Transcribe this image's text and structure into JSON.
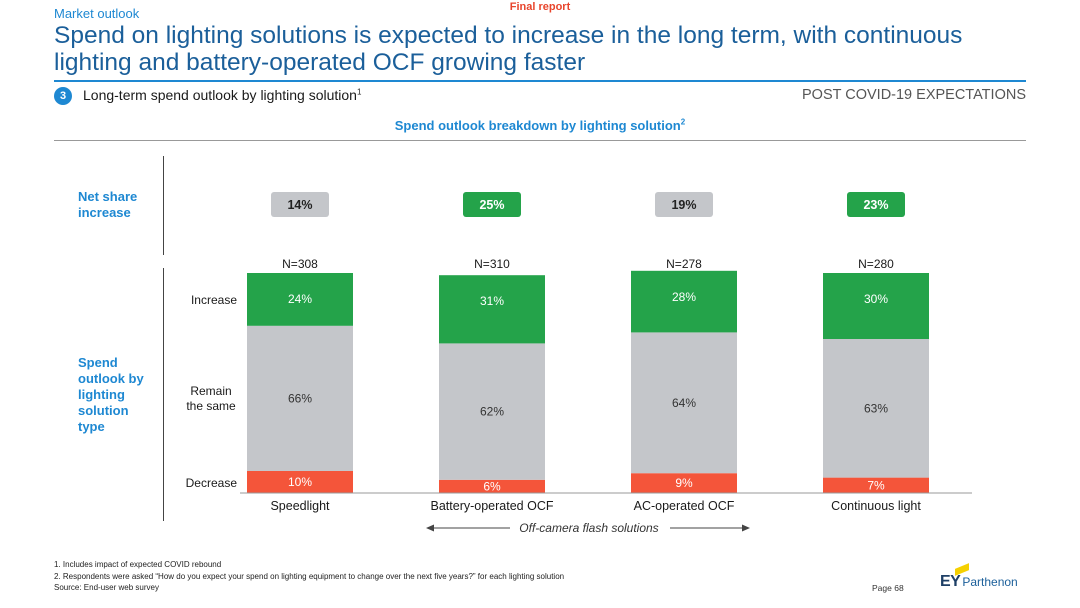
{
  "header": {
    "final_report": "Final report",
    "section_label": "Market outlook",
    "headline": "Spend on lighting solutions is expected to increase in the long term, with continuous lighting and battery-operated OCF growing faster",
    "step_number": "3",
    "subtitle": "Long-term spend outlook by lighting solution",
    "subtitle_note": "1",
    "expectations": "POST COVID-19 EXPECTATIONS"
  },
  "labels": {
    "net_share": "Net share increase",
    "spend_outlook": "Spend outlook by lighting solution type",
    "group_label": "Off-camera flash solutions"
  },
  "chart_data": {
    "type": "bar",
    "stacked": true,
    "title": "Spend outlook breakdown by lighting solution",
    "title_note": "2",
    "categories": [
      "Speedlight",
      "Battery-operated OCF",
      "AC-operated OCF",
      "Continuous light"
    ],
    "sample_sizes": [
      "N=308",
      "N=310",
      "N=278",
      "N=280"
    ],
    "net_share_increase": [
      "14%",
      "25%",
      "19%",
      "23%"
    ],
    "net_share_highlight": [
      false,
      true,
      false,
      true
    ],
    "series": [
      {
        "name": "Decrease",
        "values": [
          10,
          6,
          9,
          7
        ],
        "color": "#f4553a"
      },
      {
        "name": "Remain the same",
        "values": [
          66,
          62,
          64,
          63
        ],
        "color": "#c4c6ca"
      },
      {
        "name": "Increase",
        "values": [
          24,
          31,
          28,
          30
        ],
        "color": "#24a34a"
      }
    ],
    "row_labels": [
      "Increase",
      "Remain the same",
      "Decrease"
    ],
    "value_suffix": "%",
    "ylim": [
      0,
      100
    ]
  },
  "colors": {
    "accent_blue": "#1e88d2",
    "headline_blue": "#1b5f9a",
    "highlight_green": "#24a34a",
    "neutral_gray": "#c4c6ca",
    "decrease_red": "#f4553a"
  },
  "footnotes": [
    "1. Includes impact of expected COVID rebound",
    "2. Respondents were asked “How do you expect your spend on lighting equipment to change over the next five years?” for each lighting solution",
    "Source: End-user web survey"
  ],
  "footer": {
    "page": "Page 68",
    "logo_ey": "EY",
    "logo_parthenon": "Parthenon"
  }
}
